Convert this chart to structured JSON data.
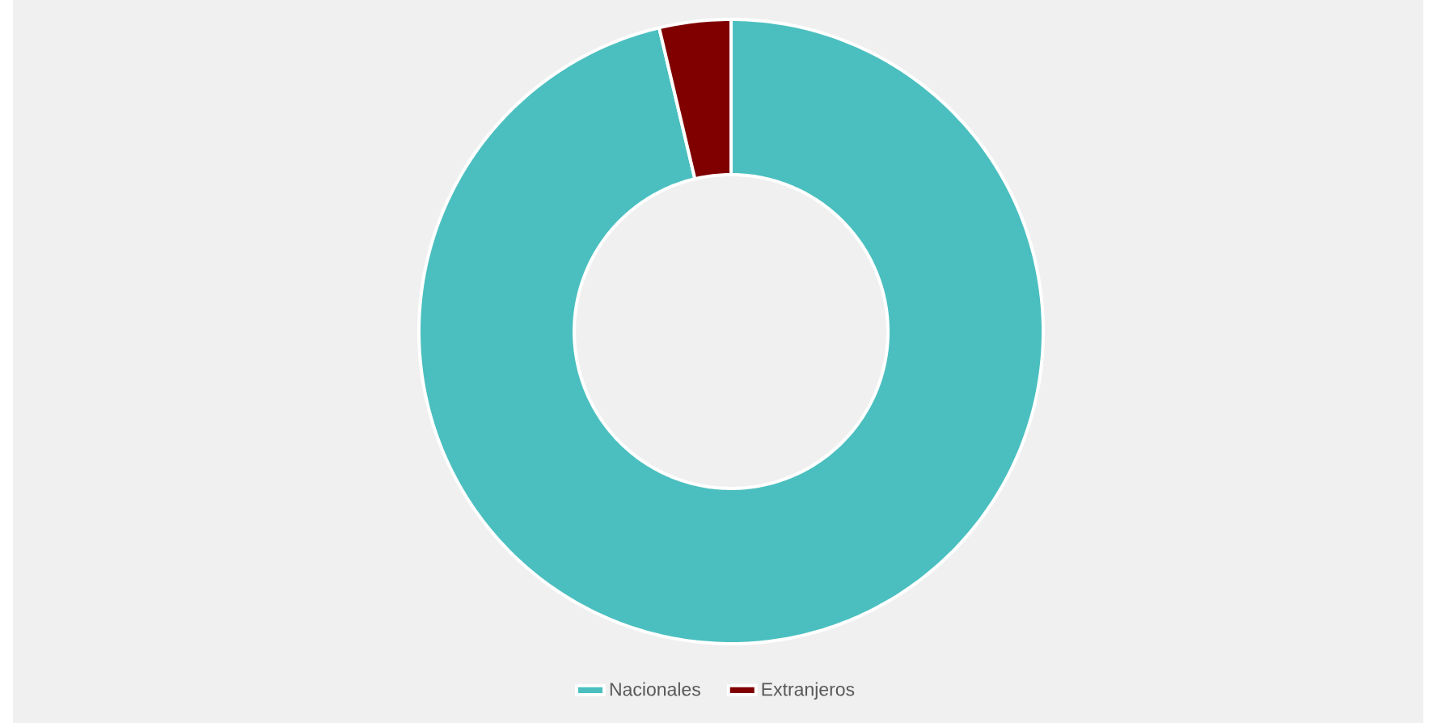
{
  "chart_data": {
    "type": "donut",
    "categories": [
      "Nacionales",
      "Extranjeros"
    ],
    "values": [
      96.3,
      3.7
    ],
    "colors": [
      "#4bbfbf",
      "#800000"
    ],
    "legend": "bottom"
  }
}
